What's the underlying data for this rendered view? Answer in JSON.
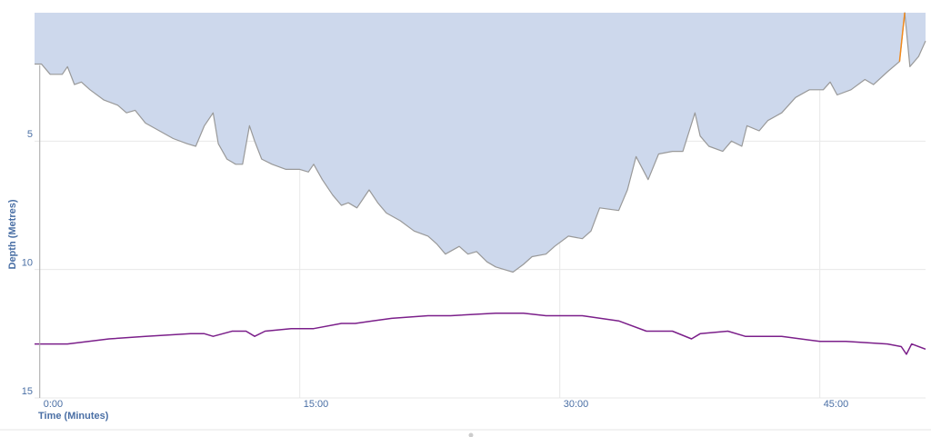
{
  "chart_data": {
    "type": "area",
    "x_label": "Time (Minutes)",
    "y_label": "Depth (Metres)",
    "xlim": [
      -0.3,
      51.1
    ],
    "ylim": [
      0,
      15
    ],
    "y_inverted": true,
    "xticks": [
      {
        "value": 0,
        "label": "0:00"
      },
      {
        "value": 15,
        "label": "15:00"
      },
      {
        "value": 30,
        "label": "30:00"
      },
      {
        "value": 45,
        "label": "45:00"
      }
    ],
    "yticks": [
      5,
      10,
      15
    ],
    "grid": true,
    "series": [
      {
        "color": "#999999",
        "fill": "#cdd8ec",
        "x": [
          -0.3,
          0.1,
          0.6,
          1.3,
          1.6,
          2.0,
          2.4,
          2.9,
          3.7,
          4.5,
          5.0,
          5.5,
          6.1,
          6.9,
          7.7,
          8.5,
          9.0,
          9.5,
          10.0,
          10.3,
          10.8,
          11.3,
          11.7,
          12.1,
          12.4,
          12.8,
          13.4,
          14.2,
          15.0,
          15.5,
          15.8,
          16.3,
          16.9,
          17.4,
          17.8,
          18.3,
          19.0,
          19.5,
          20.0,
          20.8,
          21.6,
          22.4,
          22.9,
          23.4,
          24.2,
          24.7,
          25.2,
          25.8,
          26.3,
          26.8,
          27.3,
          27.9,
          28.4,
          29.2,
          29.7,
          30.5,
          31.3,
          31.8,
          32.3,
          33.4,
          33.9,
          34.4,
          35.1,
          35.7,
          36.5,
          37.1,
          37.8,
          38.1,
          38.6,
          39.4,
          39.9,
          40.5,
          40.8,
          41.5,
          42.0,
          42.8,
          43.6,
          44.4,
          45.2,
          45.6,
          46.0,
          46.8,
          47.6,
          48.1,
          48.9,
          49.6,
          49.9,
          50.2,
          50.7,
          51.1
        ],
        "values": [
          2.0,
          2.0,
          2.4,
          2.4,
          2.1,
          2.8,
          2.7,
          3.0,
          3.4,
          3.6,
          3.9,
          3.8,
          4.3,
          4.6,
          4.9,
          5.1,
          5.2,
          4.4,
          3.9,
          5.1,
          5.7,
          5.9,
          5.9,
          4.4,
          5.0,
          5.7,
          5.9,
          6.1,
          6.1,
          6.2,
          5.9,
          6.5,
          7.1,
          7.5,
          7.4,
          7.6,
          6.9,
          7.4,
          7.8,
          8.1,
          8.5,
          8.7,
          9.0,
          9.4,
          9.1,
          9.4,
          9.3,
          9.7,
          9.9,
          10.0,
          10.1,
          9.8,
          9.5,
          9.4,
          9.1,
          8.7,
          8.8,
          8.5,
          7.6,
          7.7,
          6.9,
          5.6,
          6.5,
          5.5,
          5.4,
          5.4,
          3.9,
          4.8,
          5.2,
          5.4,
          5.0,
          5.2,
          4.4,
          4.6,
          4.2,
          3.9,
          3.3,
          3.0,
          3.0,
          2.7,
          3.2,
          3.0,
          2.6,
          2.8,
          2.3,
          1.9,
          0.0,
          2.1,
          1.7,
          1.1
        ]
      },
      {
        "color": "#f28a1c",
        "x": [
          49.6,
          49.9
        ],
        "values": [
          1.9,
          0.0
        ]
      },
      {
        "color": "#7b1f8a",
        "x": [
          -0.3,
          1.6,
          4.0,
          6.1,
          8.7,
          9.5,
          10.0,
          11.1,
          11.9,
          12.4,
          13.0,
          14.5,
          15.8,
          17.4,
          18.2,
          19.2,
          20.3,
          22.4,
          23.7,
          26.3,
          27.9,
          29.2,
          31.3,
          33.4,
          35.0,
          36.5,
          37.6,
          38.1,
          39.7,
          40.7,
          42.8,
          45.0,
          45.7,
          46.5,
          48.9,
          49.7,
          50.0,
          50.3,
          51.1
        ],
        "values": [
          12.9,
          12.9,
          12.7,
          12.6,
          12.5,
          12.5,
          12.6,
          12.4,
          12.4,
          12.6,
          12.4,
          12.3,
          12.3,
          12.1,
          12.1,
          12.0,
          11.9,
          11.8,
          11.8,
          11.7,
          11.7,
          11.8,
          11.8,
          12.0,
          12.4,
          12.4,
          12.7,
          12.5,
          12.4,
          12.6,
          12.6,
          12.8,
          12.8,
          12.8,
          12.9,
          13.0,
          13.3,
          12.9,
          13.1
        ]
      }
    ]
  }
}
